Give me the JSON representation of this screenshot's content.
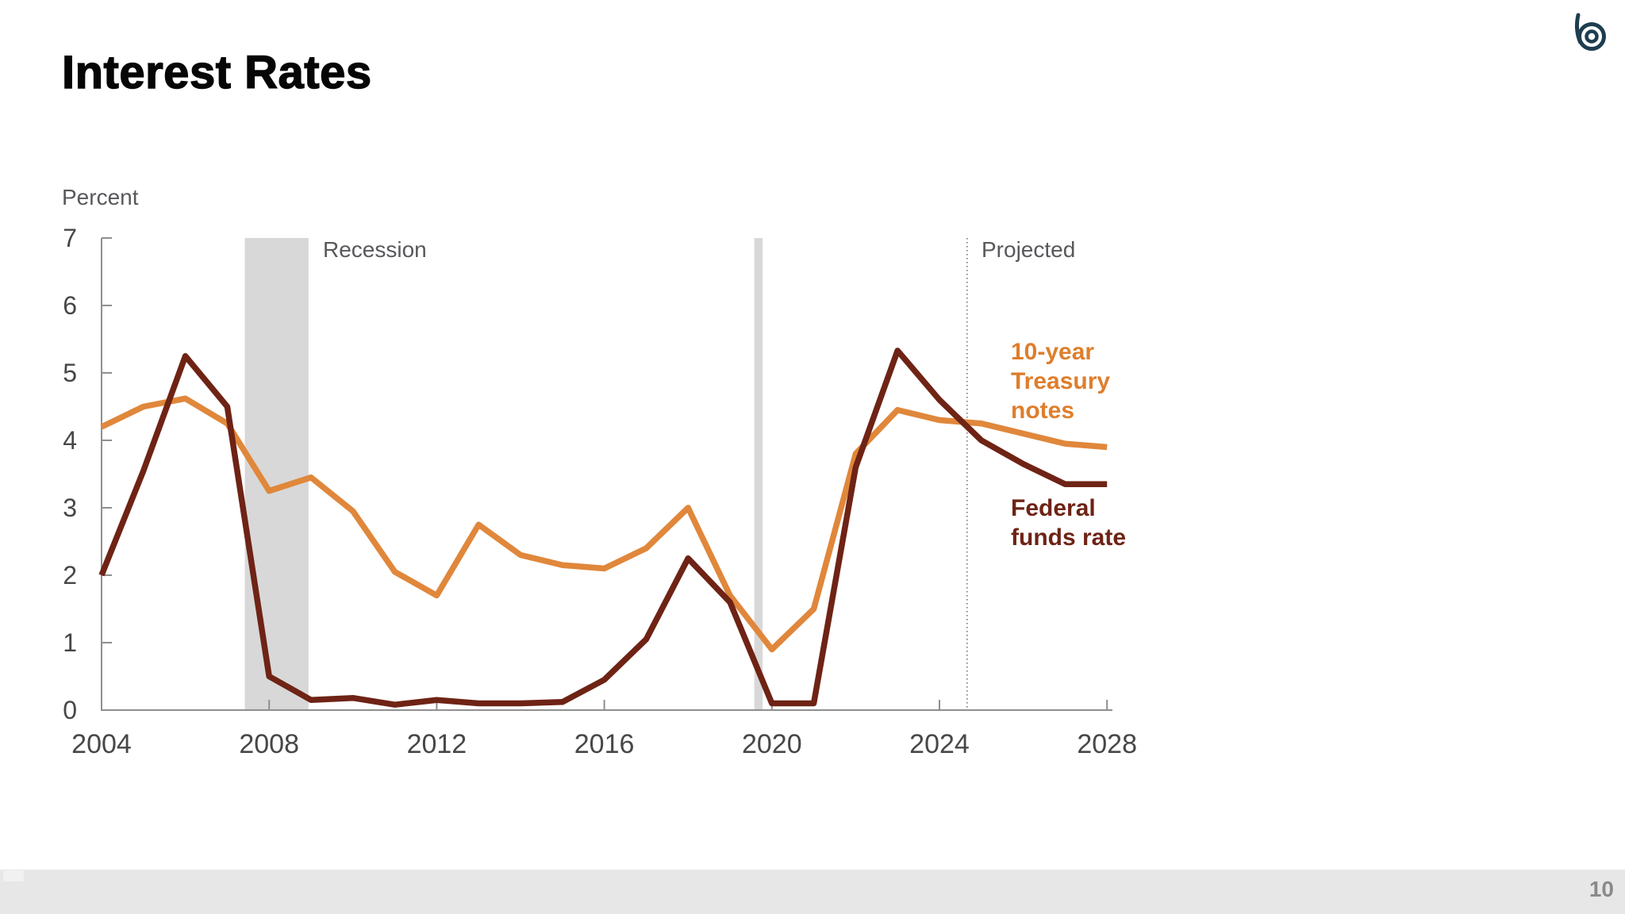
{
  "slide": {
    "title": "Interest Rates",
    "page_number": "10",
    "logo_icon": "concentric-b-rings-logo",
    "footer_color": "#E7E7E7"
  },
  "chart_data": {
    "type": "line",
    "title": "Interest Rates",
    "ylabel": "Percent",
    "ylim": [
      0,
      7
    ],
    "y_ticks": [
      0,
      1,
      2,
      3,
      4,
      5,
      6,
      7
    ],
    "x_tick_labels": [
      "2004",
      "2008",
      "2012",
      "2016",
      "2020",
      "2024",
      "2028"
    ],
    "x_range": [
      2004,
      2028
    ],
    "grid": false,
    "legend_position": "right-of-lines",
    "years": [
      2004,
      2005,
      2006,
      2007,
      2008,
      2009,
      2010,
      2011,
      2012,
      2013,
      2014,
      2015,
      2016,
      2017,
      2018,
      2019,
      2020,
      2021,
      2022,
      2023,
      2024,
      2025,
      2026,
      2027,
      2028
    ],
    "series": [
      {
        "name": "10-year Treasury notes",
        "label_lines": [
          "10-year",
          "Treasury",
          "notes"
        ],
        "color": "#E0873B",
        "label_color": "#DE7E2C",
        "values": [
          4.2,
          4.5,
          4.62,
          4.25,
          3.25,
          3.45,
          2.95,
          2.05,
          1.7,
          2.75,
          2.3,
          2.15,
          2.1,
          2.4,
          3.0,
          1.7,
          0.9,
          1.5,
          3.8,
          4.45,
          4.3,
          4.25,
          4.1,
          3.95,
          3.9
        ]
      },
      {
        "name": "Federal funds rate",
        "label_lines": [
          "Federal",
          "funds rate"
        ],
        "color": "#6E2315",
        "label_color": "#6E2315",
        "values": [
          2.0,
          3.55,
          5.25,
          4.5,
          0.5,
          0.15,
          0.18,
          0.08,
          0.15,
          0.1,
          0.1,
          0.12,
          0.45,
          1.05,
          2.25,
          1.6,
          0.1,
          0.1,
          3.6,
          5.33,
          4.6,
          4.0,
          3.65,
          3.35,
          3.35
        ]
      }
    ],
    "annotations": {
      "recession_label": "Recession",
      "projected_label": "Projected",
      "recession_bands_years": [
        [
          2007.42,
          2008.94
        ],
        [
          2019.58,
          2019.78
        ]
      ],
      "projected_start_year": 2024.66,
      "band_color": "#D8D8D8",
      "axis_color": "#8F8F8F"
    }
  }
}
